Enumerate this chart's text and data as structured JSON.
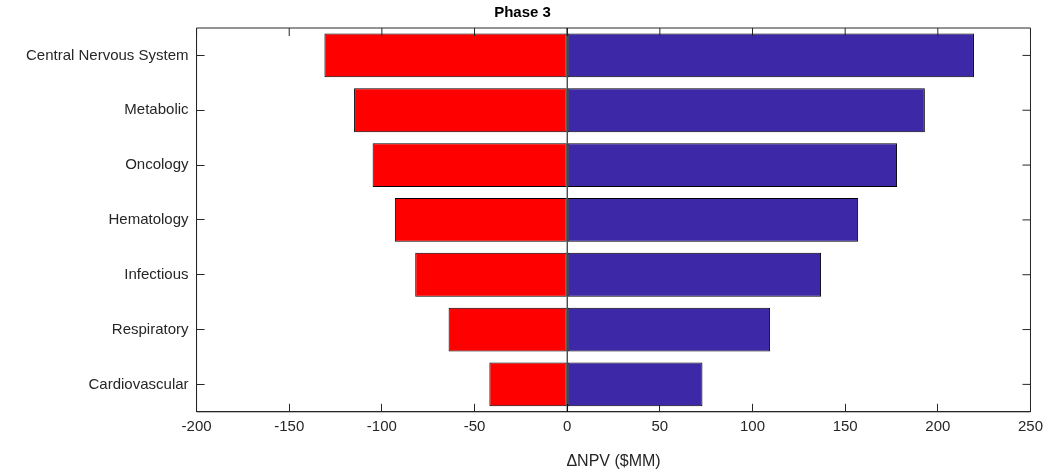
{
  "chart_data": {
    "type": "bar",
    "title": "Phase 3",
    "xlabel": "ΔNPV ($MM)",
    "orientation": "horizontal",
    "stacked": true,
    "categories": [
      "Central Nervous System",
      "Metabolic",
      "Oncology",
      "Hematology",
      "Infectious",
      "Respiratory",
      "Cardiovascular"
    ],
    "series": [
      {
        "color": "#ff0000",
        "values": [
          -131,
          -115,
          -105,
          -93,
          -82,
          -64,
          -42
        ]
      },
      {
        "color": "#3d28a8",
        "values": [
          219.5,
          193,
          178,
          157,
          137,
          109.5,
          73
        ]
      }
    ],
    "xlim": [
      -200,
      250
    ],
    "xticks": [
      -200,
      -150,
      -100,
      -50,
      0,
      50,
      100,
      150,
      200,
      250
    ],
    "ref_lines": [
      {
        "axis": "x",
        "value": 0,
        "color": "#000000"
      }
    ],
    "grid": false,
    "legend": false
  }
}
